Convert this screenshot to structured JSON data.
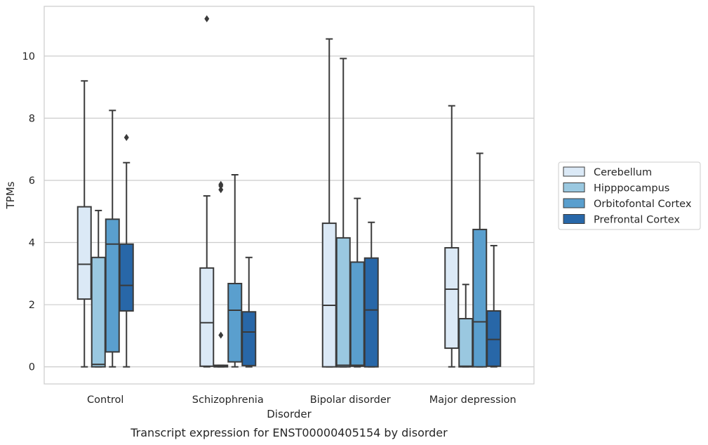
{
  "chart_data": {
    "type": "boxplot",
    "title": "",
    "caption": "Transcript expression for ENST00000405154 by disorder",
    "xlabel": "Disorder",
    "ylabel": "TPMs",
    "ylim": [
      -0.55,
      11.6
    ],
    "yticks": [
      0,
      2,
      4,
      6,
      8,
      10
    ],
    "grid": "horizontal",
    "legend_position": "right",
    "categories": [
      "Control",
      "Schizophrenia",
      "Bipolar disorder",
      "Major depression"
    ],
    "series": [
      {
        "name": "Cerebellum",
        "color": "#dbe9f6",
        "boxes": [
          {
            "whisker_low": 0.0,
            "q1": 2.18,
            "median": 3.3,
            "q3": 5.15,
            "whisker_high": 9.2,
            "outliers": []
          },
          {
            "whisker_low": 0.0,
            "q1": 0.02,
            "median": 1.42,
            "q3": 3.18,
            "whisker_high": 5.5,
            "outliers": [
              11.2
            ]
          },
          {
            "whisker_low": 0.0,
            "q1": 0.0,
            "median": 1.98,
            "q3": 4.62,
            "whisker_high": 10.55,
            "outliers": []
          },
          {
            "whisker_low": 0.0,
            "q1": 0.6,
            "median": 2.5,
            "q3": 3.83,
            "whisker_high": 8.4,
            "outliers": []
          }
        ]
      },
      {
        "name": "Hipppocampus",
        "color": "#9ac8e0",
        "boxes": [
          {
            "whisker_low": 0.0,
            "q1": 0.0,
            "median": 0.08,
            "q3": 3.52,
            "whisker_high": 5.03,
            "outliers": []
          },
          {
            "whisker_low": 0.0,
            "q1": 0.0,
            "median": 0.02,
            "q3": 0.05,
            "whisker_high": 0.05,
            "outliers": []
          },
          {
            "whisker_low": 0.0,
            "q1": 0.0,
            "median": 0.05,
            "q3": 4.15,
            "whisker_high": 9.92,
            "outliers": []
          },
          {
            "whisker_low": 0.0,
            "q1": 0.0,
            "median": 0.02,
            "q3": 1.55,
            "whisker_high": 2.65,
            "outliers": []
          }
        ]
      },
      {
        "name": "Orbitofontal Cortex",
        "color": "#5a9fce",
        "boxes": [
          {
            "whisker_low": 0.0,
            "q1": 0.48,
            "median": 3.95,
            "q3": 4.75,
            "whisker_high": 8.25,
            "outliers": []
          },
          {
            "whisker_low": 0.0,
            "q1": 0.16,
            "median": 1.82,
            "q3": 2.68,
            "whisker_high": 6.18,
            "outliers": []
          },
          {
            "whisker_low": 0.0,
            "q1": 0.02,
            "median": 0.05,
            "q3": 3.37,
            "whisker_high": 5.42,
            "outliers": []
          },
          {
            "whisker_low": 0.0,
            "q1": 0.0,
            "median": 1.45,
            "q3": 4.42,
            "whisker_high": 6.87,
            "outliers": []
          }
        ]
      },
      {
        "name": "Prefrontal Cortex",
        "color": "#2867a8",
        "boxes": [
          {
            "whisker_low": 0.0,
            "q1": 1.8,
            "median": 2.62,
            "q3": 3.95,
            "whisker_high": 6.57,
            "outliers": [
              7.38
            ]
          },
          {
            "whisker_low": 0.0,
            "q1": 0.04,
            "median": 1.12,
            "q3": 1.77,
            "whisker_high": 3.52,
            "outliers": []
          },
          {
            "whisker_low": 0.0,
            "q1": 0.0,
            "median": 1.83,
            "q3": 3.5,
            "whisker_high": 4.65,
            "outliers": []
          },
          {
            "whisker_low": 0.0,
            "q1": 0.02,
            "median": 0.88,
            "q3": 1.8,
            "whisker_high": 3.9,
            "outliers": []
          }
        ]
      }
    ],
    "extra_outliers": [
      {
        "category": 1,
        "series": 1,
        "values": [
          1.02,
          5.7,
          5.82,
          5.87
        ]
      }
    ]
  }
}
